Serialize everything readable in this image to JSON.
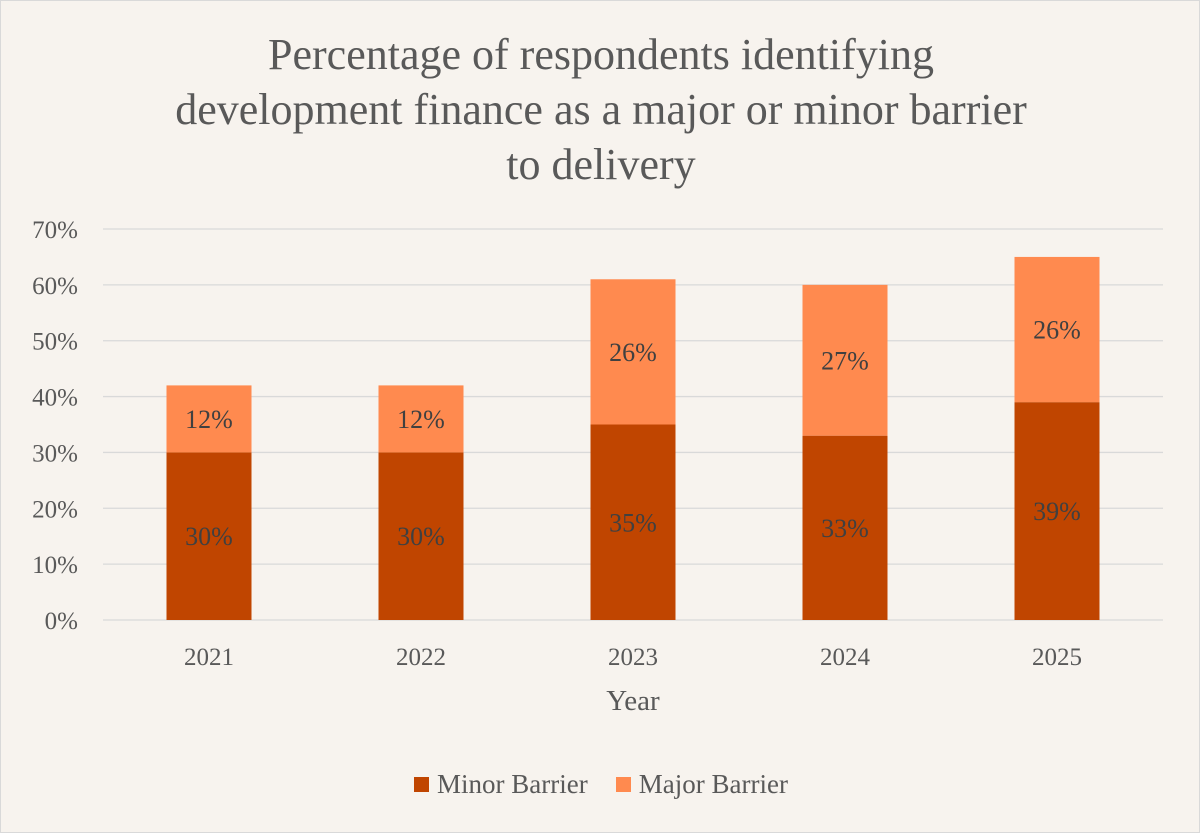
{
  "chart_data": {
    "type": "bar",
    "stacked": true,
    "title": "Percentage of respondents identifying development finance as a major or minor barrier to delivery",
    "title_lines": [
      "Percentage of respondents identifying",
      "development finance as a major or minor barrier",
      "to delivery"
    ],
    "xlabel": "Year",
    "ylabel": "",
    "categories": [
      "2021",
      "2022",
      "2023",
      "2024",
      "2025"
    ],
    "series": [
      {
        "name": "Minor Barrier",
        "values": [
          30,
          30,
          35,
          33,
          39
        ],
        "labels": [
          "30%",
          "30%",
          "35%",
          "33%",
          "39%"
        ],
        "color": "#c04500"
      },
      {
        "name": "Major Barrier",
        "values": [
          12,
          12,
          26,
          27,
          26
        ],
        "labels": [
          "12%",
          "12%",
          "26%",
          "27%",
          "26%"
        ],
        "color": "#ff8a4f"
      }
    ],
    "ylim": [
      0,
      70
    ],
    "yticks": [
      0,
      10,
      20,
      30,
      40,
      50,
      60,
      70
    ],
    "ytick_labels": [
      "0%",
      "10%",
      "20%",
      "30%",
      "40%",
      "50%",
      "60%",
      "70%"
    ],
    "grid": true,
    "legend_position": "bottom",
    "background": "#f7f3ee",
    "gridline_color": "#d9d9d9"
  },
  "legend": {
    "items": [
      {
        "label": "Minor Barrier",
        "color": "#c04500"
      },
      {
        "label": "Major Barrier",
        "color": "#ff8a4f"
      }
    ]
  }
}
